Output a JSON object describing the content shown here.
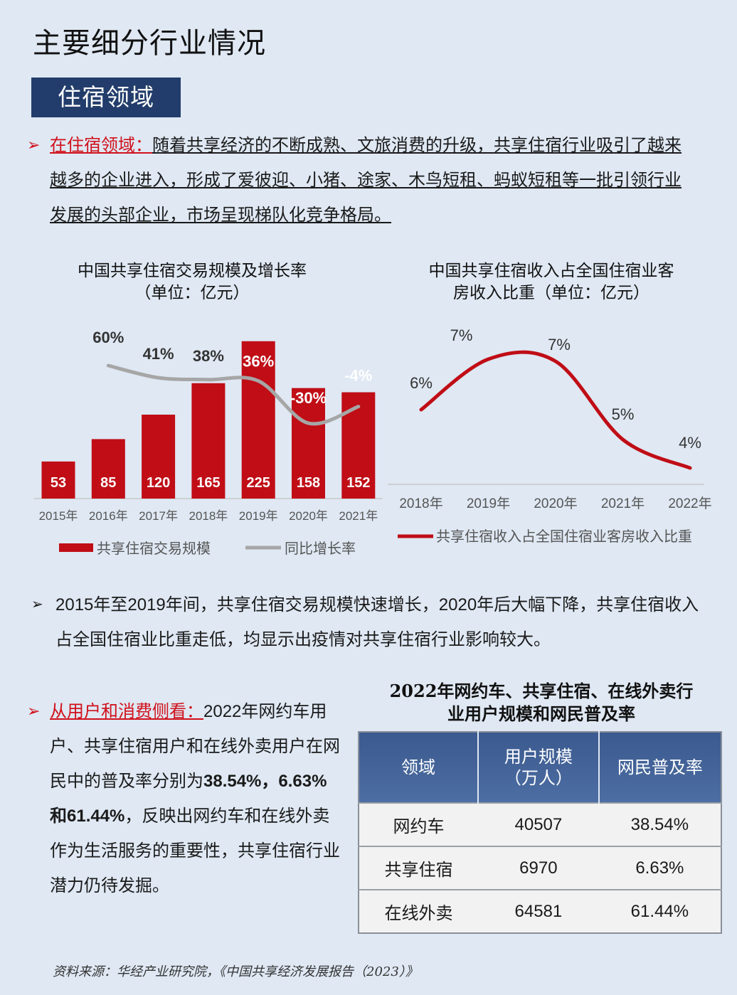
{
  "title": "主要细分行业情况",
  "section_tag": "住宿领域",
  "para1": {
    "lead": "在住宿领域：",
    "body": "随着共享经济的不断成熟、文旅消费的升级，共享住宿行业吸引了越来越多的企业进入，形成了爱彼迎、小猪、途家、木鸟短租、蚂蚁短租等一批引领行业发展的头部企业，市场呈现梯队化竞争格局。"
  },
  "chart1_title": [
    "中国共享住宿交易规模及增长率",
    "（单位：亿元）"
  ],
  "chart2_title": [
    "中国共享住宿收入占全国住宿业客",
    "房收入比重（单位：亿元）"
  ],
  "chart_data": [
    {
      "type": "bar",
      "categories": [
        "2015年",
        "2016年",
        "2017年",
        "2018年",
        "2019年",
        "2020年",
        "2021年"
      ],
      "series": [
        {
          "name": "共享住宿交易规模",
          "type": "bar",
          "values": [
            53,
            85,
            120,
            165,
            225,
            158,
            152
          ],
          "labels": [
            "53",
            "85",
            "120",
            "165",
            "225",
            "158",
            "152"
          ]
        },
        {
          "name": "同比增长率",
          "type": "line",
          "values": [
            null,
            60,
            41,
            38,
            36,
            -30,
            -4
          ],
          "labels": [
            "",
            "60%",
            "41%",
            "38%",
            "36%",
            "-30%",
            "-4%"
          ]
        }
      ],
      "ylim": [
        0,
        240
      ],
      "legend": "bottom",
      "colors": {
        "bar": "#c00d16",
        "line": "#a6a6a6"
      }
    },
    {
      "type": "line",
      "categories": [
        "2018年",
        "2019年",
        "2020年",
        "2021年",
        "2022年"
      ],
      "series": [
        {
          "name": "共享住宿收入占全国住宿业客房收入比重",
          "values": [
            6,
            7,
            7,
            5,
            4
          ],
          "labels": [
            "6%",
            "7%",
            "7%",
            "5%",
            "4%"
          ]
        }
      ],
      "legend": "bottom",
      "colors": {
        "line": "#c00d16"
      }
    }
  ],
  "para2": "2015年至2019年间，共享住宿交易规模快速增长，2020年后大幅下降，共享住宿收入占全国住宿业比重走低，均显示出疫情对共享住宿行业影响较大。",
  "para3": {
    "lead": "从用户和消费侧看：",
    "body1": "2022年网约车用户、共享住宿用户和在线外卖用户在网民中的普及率分别为",
    "bold": "38.54%，6.63%和61.44%",
    "body2": "，反映出网约车和在线外卖作为生活服务的重要性，共享住宿行业潜力仍待发掘。"
  },
  "table": {
    "title": [
      "2022年网约车、共享住宿、在线外卖行",
      "业用户规模和网民普及率"
    ],
    "headers": [
      "领域",
      "用户规模",
      "（万人）",
      "网民普及率"
    ],
    "rows": [
      [
        "网约车",
        "40507",
        "38.54%"
      ],
      [
        "共享住宿",
        "6970",
        "6.63%"
      ],
      [
        "在线外卖",
        "64581",
        "61.44%"
      ]
    ]
  },
  "source": "资料来源：华经产业研究院，《中国共享经济发展报告（2023）》",
  "icons": {
    "bullet": "arrow-bullet-icon"
  }
}
